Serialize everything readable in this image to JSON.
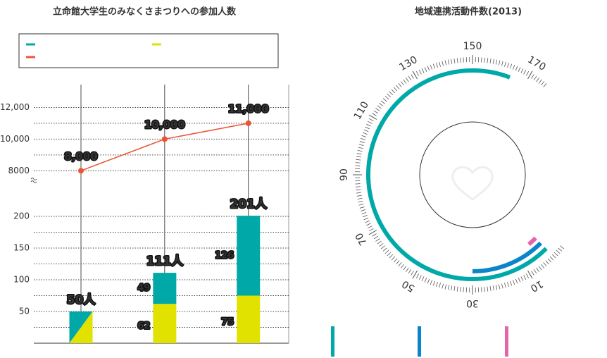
{
  "chart_data": [
    {
      "type": "combo",
      "title": "立命館大学生のみなくさまつりへの参加人数",
      "categories": [
        null,
        null,
        null
      ],
      "series": [
        {
          "color": "#00a9a8",
          "values": [
            null,
            49,
            126
          ],
          "kind": "bar"
        },
        {
          "color": "#e2e200",
          "values": [
            null,
            62,
            75
          ],
          "kind": "bar"
        },
        {
          "color": "#ec5434",
          "values": [
            8000,
            10000,
            11000
          ],
          "value_labels": [
            "8,000",
            "10,000",
            "11,000"
          ],
          "kind": "line",
          "axis": "y2"
        }
      ],
      "totals": {
        "values": [
          50,
          111,
          201
        ],
        "value_labels": [
          "50人",
          "111人",
          "201人"
        ]
      },
      "ylim": [
        0,
        225
      ],
      "yticks": [
        50,
        100,
        150,
        200
      ],
      "minor_yticks": [
        25,
        75,
        125,
        175
      ],
      "y2lim": [
        7500,
        13000
      ],
      "y2ticks": [
        {
          "value": 12000,
          "label": "12,000"
        },
        {
          "value": 10000,
          "label": "10,000"
        },
        8000
      ],
      "minor_y2ticks": [
        9000,
        11000
      ],
      "grid": true
    },
    {
      "type": "radial",
      "title": "地域連携活動件数(2013)",
      "series": [
        {
          "color": "#00a9a8",
          "value": 164
        },
        {
          "color": "#0a85c8",
          "value": 30
        },
        {
          "color": "#e465ac",
          "value": 4
        }
      ],
      "rlim": [
        -4,
        176
      ],
      "rticks": [
        10,
        30,
        50,
        70,
        90,
        110,
        130,
        150,
        170
      ],
      "minor_tick_interval": 1
    }
  ]
}
